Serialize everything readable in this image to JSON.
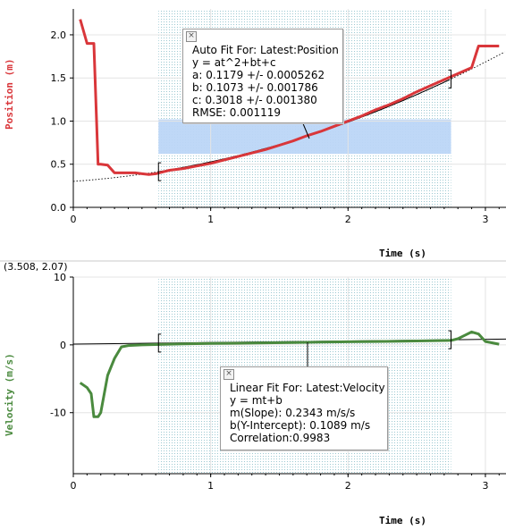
{
  "coord_readout": "(3.508, 2.07)",
  "chart_data": [
    {
      "type": "line",
      "ylabel": "Position (m)",
      "xlabel": "Time (s)",
      "xlim": [
        0,
        3.15
      ],
      "ylim": [
        0,
        2.3
      ],
      "xticks": [
        "0",
        "1",
        "2",
        "3"
      ],
      "yticks": [
        "0.0",
        "0.5",
        "1.0",
        "1.5",
        "2.0"
      ],
      "ytick_values": [
        0.0,
        0.5,
        1.0,
        1.5,
        2.0
      ],
      "grid": true,
      "series_color": "#d9363a",
      "selection": {
        "x_start": 0.62,
        "x_end": 2.75
      },
      "band": {
        "y_min": 0.62,
        "y_max": 1.02
      },
      "series": [
        {
          "name": "Latest:Position",
          "x": [
            0.05,
            0.1,
            0.15,
            0.18,
            0.2,
            0.25,
            0.3,
            0.35,
            0.4,
            0.45,
            0.5,
            0.55,
            0.6,
            0.65,
            0.7,
            0.8,
            0.9,
            1.0,
            1.1,
            1.2,
            1.3,
            1.4,
            1.5,
            1.6,
            1.7,
            1.8,
            1.9,
            2.0,
            2.1,
            2.2,
            2.3,
            2.4,
            2.5,
            2.6,
            2.7,
            2.8,
            2.9,
            2.95,
            3.0,
            3.1
          ],
          "y": [
            2.18,
            1.9,
            1.9,
            0.5,
            0.5,
            0.49,
            0.4,
            0.4,
            0.4,
            0.4,
            0.39,
            0.38,
            0.39,
            0.41,
            0.43,
            0.45,
            0.48,
            0.51,
            0.55,
            0.59,
            0.63,
            0.67,
            0.72,
            0.77,
            0.83,
            0.88,
            0.94,
            1.0,
            1.06,
            1.13,
            1.19,
            1.26,
            1.34,
            1.41,
            1.48,
            1.55,
            1.62,
            1.87,
            1.87,
            1.87
          ]
        }
      ],
      "fit": {
        "title": "Auto Fit For:  Latest:Position",
        "equation": "y = at^2+bt+c",
        "lines": [
          "a: 0.1179 +/- 0.0005262",
          "b: 0.1073 +/- 0.001786",
          "c: 0.3018 +/- 0.001380",
          "RMSE: 0.001119"
        ],
        "coefficients": {
          "a": 0.1179,
          "b": 0.1073,
          "c": 0.3018
        }
      }
    },
    {
      "type": "line",
      "ylabel": "Velocity (m/s)",
      "xlabel": "Time (s)",
      "xlim": [
        0,
        3.15
      ],
      "ylim": [
        -19,
        10
      ],
      "xticks": [
        "0",
        "1",
        "2",
        "3"
      ],
      "yticks": [
        "-10",
        "0",
        "10"
      ],
      "ytick_values": [
        -10,
        0,
        10
      ],
      "grid": true,
      "series_color": "#4a8a3e",
      "selection": {
        "x_start": 0.62,
        "x_end": 2.75
      },
      "series": [
        {
          "name": "Latest:Velocity",
          "x": [
            0.05,
            0.1,
            0.13,
            0.15,
            0.18,
            0.2,
            0.25,
            0.3,
            0.35,
            0.4,
            0.5,
            0.6,
            0.7,
            0.8,
            1.0,
            1.2,
            1.4,
            1.6,
            1.8,
            2.0,
            2.2,
            2.4,
            2.6,
            2.75,
            2.8,
            2.85,
            2.9,
            2.95,
            3.0,
            3.1
          ],
          "y": [
            -5.6,
            -6.3,
            -7.2,
            -10.6,
            -10.6,
            -10.0,
            -4.5,
            -2.0,
            -0.3,
            -0.1,
            0.0,
            0.05,
            0.1,
            0.15,
            0.2,
            0.25,
            0.3,
            0.35,
            0.4,
            0.45,
            0.5,
            0.55,
            0.6,
            0.65,
            0.9,
            1.4,
            1.9,
            1.6,
            0.5,
            0.1
          ]
        }
      ],
      "fit": {
        "title": "Linear Fit For:  Latest:Velocity",
        "equation": "y = mt+b",
        "lines": [
          "m(Slope): 0.2343 m/s/s",
          "b(Y-Intercept): 0.1089 m/s",
          "Correlation:0.9983"
        ],
        "coefficients": {
          "m": 0.2343,
          "b": 0.1089
        }
      }
    }
  ]
}
